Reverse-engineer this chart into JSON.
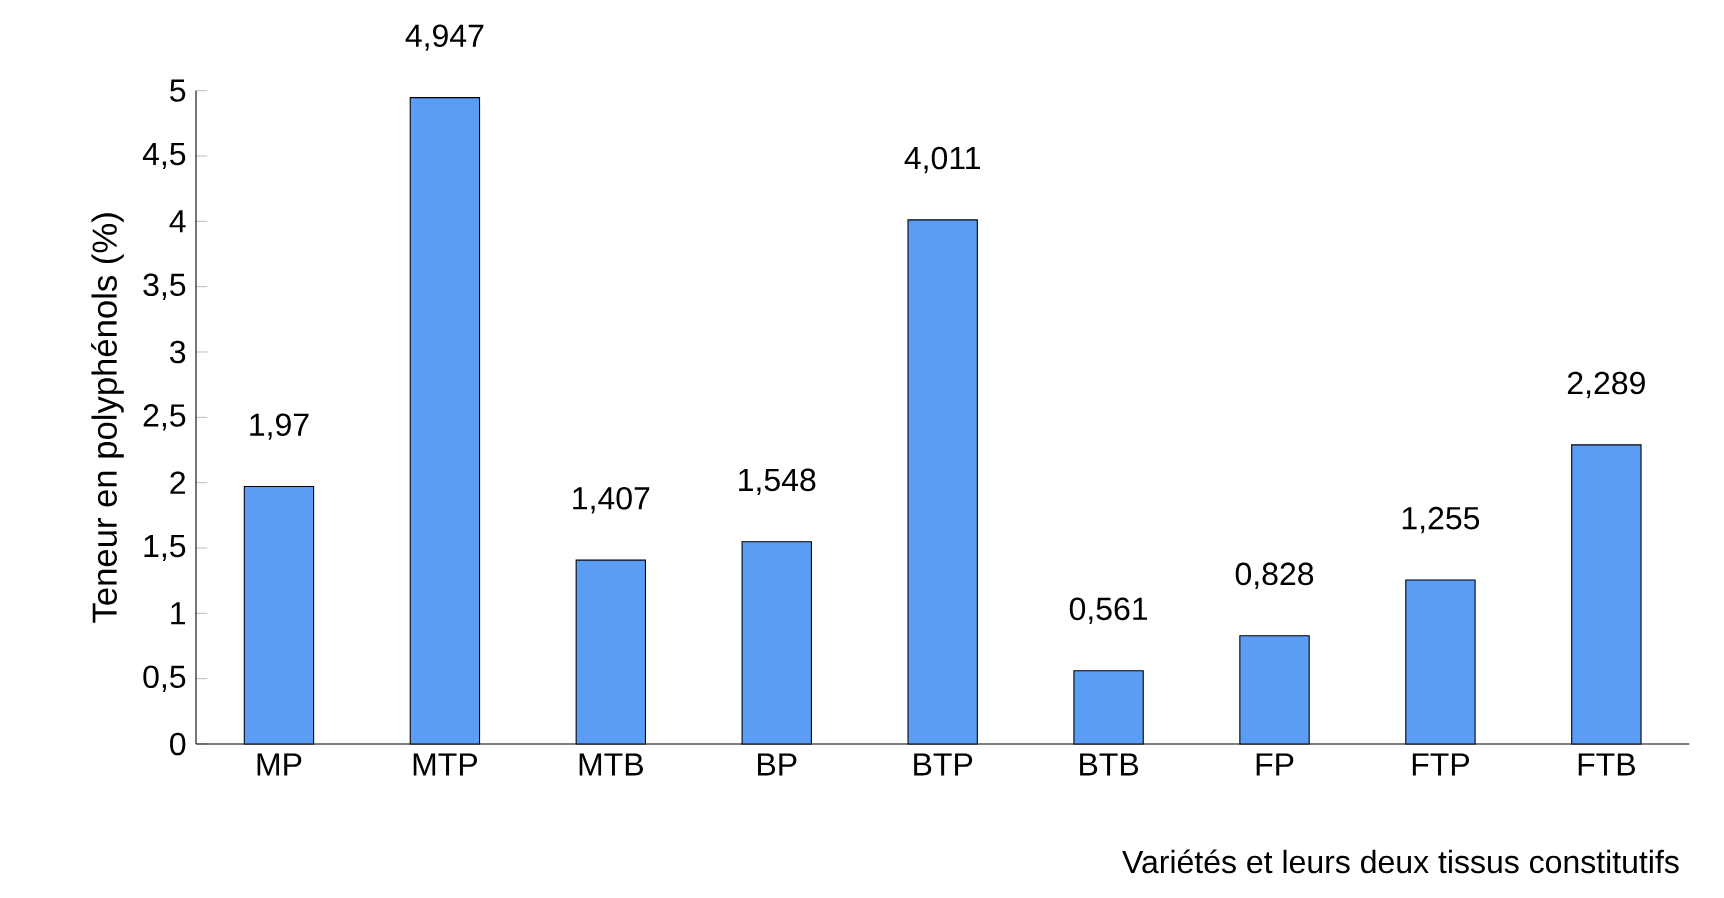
{
  "chart_data": {
    "type": "bar",
    "xlabel": "Variétés et leurs deux tissus constitutifs",
    "ylabel": "Teneur en polyphénols (%)",
    "categories": [
      "MP",
      "MTP",
      "MTB",
      "BP",
      "BTP",
      "BTB",
      "FP",
      "FTP",
      "FTB"
    ],
    "values": [
      1.97,
      4.947,
      1.407,
      1.548,
      4.011,
      0.561,
      0.828,
      1.255,
      2.289
    ],
    "value_labels": [
      "1,97",
      "4,947",
      "1,407",
      "1,548",
      "4,011",
      "0,561",
      "0,828",
      "1,255",
      "2,289"
    ],
    "color": "#5b9cf5",
    "ylim": [
      0,
      5
    ],
    "yticks": [
      0,
      {
        "value": 0.5,
        "label": "0,5"
      },
      1,
      {
        "value": 1.5,
        "label": "1,5"
      },
      2,
      {
        "value": 2.5,
        "label": "2,5"
      },
      3,
      {
        "value": 3.5,
        "label": "3,5"
      },
      4,
      {
        "value": 4.5,
        "label": "4,5"
      },
      5
    ]
  }
}
